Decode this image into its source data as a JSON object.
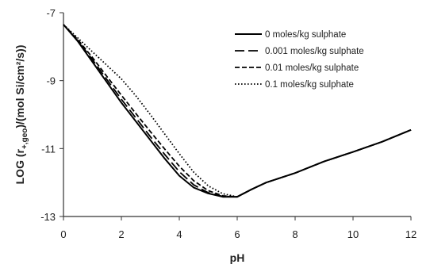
{
  "chart_data": {
    "type": "line",
    "xlabel": "pH",
    "ylabel_parts": {
      "before_sub": "LOG (r",
      "subscript": "+,geo",
      "after_sub": ")/(mol Si/cm²/s))"
    },
    "xlim": [
      0,
      12
    ],
    "ylim": [
      -13,
      -7
    ],
    "x_ticks": [
      "0",
      "2",
      "4",
      "6",
      "8",
      "10",
      "12"
    ],
    "x_tick_values": [
      0,
      2,
      4,
      6,
      8,
      10,
      12
    ],
    "y_ticks": [
      "-7",
      "-9",
      "-11",
      "-13"
    ],
    "y_tick_values": [
      -7,
      -9,
      -11,
      -13
    ],
    "grid": false,
    "legend_position": "top-right",
    "series": [
      {
        "name": "0 moles/kg sulphate",
        "style": "solid",
        "color": "#000000",
        "x": [
          0,
          0.5,
          1,
          1.5,
          2,
          2.5,
          3,
          3.5,
          4,
          4.5,
          5,
          5.5,
          6,
          6.5,
          7,
          8,
          9,
          10,
          11,
          12
        ],
        "y": [
          -7.35,
          -7.85,
          -8.45,
          -9.05,
          -9.65,
          -10.2,
          -10.75,
          -11.3,
          -11.8,
          -12.15,
          -12.32,
          -12.42,
          -12.42,
          -12.2,
          -12.0,
          -11.72,
          -11.38,
          -11.1,
          -10.8,
          -10.45
        ]
      },
      {
        "name": "0.001 moles/kg sulphate",
        "style": "longdash",
        "color": "#000000",
        "x": [
          0,
          0.5,
          1,
          1.5,
          2,
          2.5,
          3,
          3.5,
          4,
          4.5,
          5,
          5.5,
          6,
          6.5,
          7,
          8,
          9,
          10,
          11,
          12
        ],
        "y": [
          -7.35,
          -7.83,
          -8.38,
          -8.97,
          -9.55,
          -10.1,
          -10.65,
          -11.18,
          -11.68,
          -12.07,
          -12.3,
          -12.41,
          -12.42,
          -12.2,
          -12.0,
          -11.72,
          -11.38,
          -11.1,
          -10.8,
          -10.45
        ]
      },
      {
        "name": "0.01 moles/kg sulphate",
        "style": "dash",
        "color": "#000000",
        "x": [
          0,
          0.5,
          1,
          1.5,
          2,
          2.5,
          3,
          3.5,
          4,
          4.5,
          5,
          5.5,
          6,
          6.5,
          7,
          8,
          9,
          10,
          11,
          12
        ],
        "y": [
          -7.35,
          -7.8,
          -8.32,
          -8.88,
          -9.43,
          -9.97,
          -10.5,
          -11.02,
          -11.52,
          -11.95,
          -12.24,
          -12.39,
          -12.42,
          -12.2,
          -12.0,
          -11.72,
          -11.38,
          -11.1,
          -10.8,
          -10.45
        ]
      },
      {
        "name": "0.1 moles/kg sulphate",
        "style": "dot",
        "color": "#000000",
        "x": [
          0,
          0.5,
          1,
          1.5,
          2,
          2.5,
          3,
          3.5,
          4,
          4.5,
          5,
          5.5,
          6,
          6.5,
          7,
          8,
          9,
          10,
          11,
          12
        ],
        "y": [
          -7.35,
          -7.75,
          -8.15,
          -8.55,
          -8.95,
          -9.45,
          -10.0,
          -10.58,
          -11.15,
          -11.7,
          -12.1,
          -12.33,
          -12.42,
          -12.2,
          -12.0,
          -11.72,
          -11.38,
          -11.1,
          -10.8,
          -10.45
        ]
      }
    ]
  }
}
